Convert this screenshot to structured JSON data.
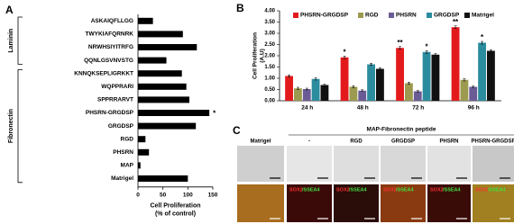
{
  "chart_data": [
    {
      "type": "barh",
      "panel": "A",
      "categories": [
        "ASKAIQFLLGG",
        "TWYKIAFQRNRK",
        "NRWHSIYITRFG",
        "QQNLGSVNVSTG",
        "KNNQKSEPLIGRKKT",
        "WQPPRARI",
        "SPPRRARVT",
        "PHSRN-GRGDSP",
        "GRGDSP",
        "RGD",
        "PHSRN",
        "MAP",
        "Matrigel"
      ],
      "values": [
        30,
        90,
        118,
        57,
        88,
        97,
        103,
        143,
        116,
        15,
        22,
        5,
        100
      ],
      "color": "#000000",
      "xlim": [
        0,
        150
      ],
      "xticks": [
        0,
        50,
        100,
        150
      ],
      "xlabel": [
        "Cell Proliferation",
        "(% of control)"
      ],
      "groups": [
        {
          "label": "Laminin",
          "first": "ASKAIQFLLGG",
          "last": "QQNLGSVNVSTG"
        },
        {
          "label": "Fibronectin",
          "first": "KNNQKSEPLIGRKKT",
          "last": "Matrigel"
        }
      ],
      "annotations": [
        {
          "text": "*",
          "category": "PHSRN-GRGDSP"
        }
      ]
    },
    {
      "type": "bar",
      "panel": "B",
      "categories": [
        "24 h",
        "48 h",
        "72 h",
        "96 h"
      ],
      "ylabel": [
        "Cell Proliferation",
        "(A.U)"
      ],
      "ylim": [
        0,
        4
      ],
      "yticks": [
        {
          "value": 0,
          "label": "0.00"
        },
        {
          "value": 0.5,
          "label": "0.50"
        },
        {
          "value": 1,
          "label": "1.00"
        },
        {
          "value": 1.5,
          "label": "1.50"
        },
        {
          "value": 2,
          "label": "2.00"
        },
        {
          "value": 2.5,
          "label": "2.50"
        },
        {
          "value": 3,
          "label": "3.00"
        },
        {
          "value": 3.5,
          "label": "3.50"
        },
        {
          "value": 4,
          "label": "4.00"
        }
      ],
      "series": [
        {
          "name": "PHSRN-GRGDSP",
          "color": "#e31a1c",
          "values": [
            1.1,
            1.93,
            2.35,
            3.27
          ],
          "errors": [
            0.05,
            0.06,
            0.06,
            0.06
          ]
        },
        {
          "name": "RGD",
          "color": "#9c9a4e",
          "values": [
            0.55,
            0.62,
            0.78,
            0.93
          ],
          "errors": [
            0.05,
            0.05,
            0.05,
            0.05
          ]
        },
        {
          "name": "PHSRN",
          "color": "#6b5b95",
          "values": [
            0.52,
            0.45,
            0.42,
            0.62
          ],
          "errors": [
            0.04,
            0.04,
            0.04,
            0.04
          ]
        },
        {
          "name": "GRGDSP",
          "color": "#2b8c9e",
          "values": [
            0.97,
            1.62,
            2.17,
            2.58
          ],
          "errors": [
            0.05,
            0.05,
            0.06,
            0.06
          ]
        },
        {
          "name": "Matrigel",
          "color": "#111111",
          "values": [
            0.7,
            1.42,
            2.05,
            2.22
          ],
          "errors": [
            0.04,
            0.05,
            0.05,
            0.05
          ]
        }
      ],
      "annotations": [
        {
          "text": "*",
          "series": "PHSRN-GRGDSP",
          "category": "48 h"
        },
        {
          "text": "**",
          "series": "PHSRN-GRGDSP",
          "category": "72 h"
        },
        {
          "text": "*",
          "series": "GRGDSP",
          "category": "72 h"
        },
        {
          "text": "**",
          "series": "PHSRN-GRGDSP",
          "category": "96 h"
        },
        {
          "text": "*",
          "series": "GRGDSP",
          "category": "96 h"
        }
      ]
    }
  ],
  "figure_c": {
    "panel": "C",
    "group_label": "MAP-Fibronectin peptide",
    "columns": [
      "Matrigel",
      "-",
      "RGD",
      "GRGDSP",
      "PHSRN",
      "PHSRN-GRGDSP"
    ],
    "stain": [
      "SOX2",
      "/SSEA4"
    ]
  }
}
